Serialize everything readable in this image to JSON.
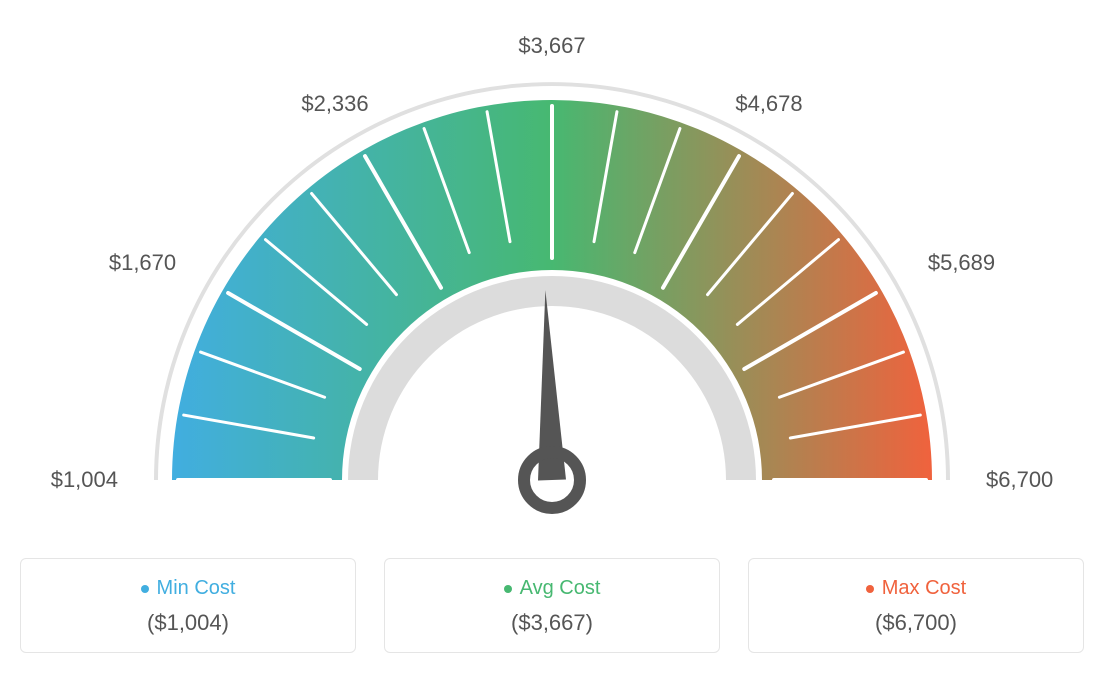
{
  "gauge": {
    "type": "gauge",
    "min_value": 1004,
    "max_value": 6700,
    "avg_value": 3667,
    "tick_labels": [
      "$1,004",
      "$1,670",
      "$2,336",
      "$3,667",
      "$4,678",
      "$5,689",
      "$6,700"
    ],
    "start_angle_deg": 180,
    "end_angle_deg": 0,
    "outer_radius": 380,
    "inner_radius": 210,
    "colors": {
      "left": "#41aee0",
      "mid": "#47b871",
      "right": "#f0623d",
      "tick": "#ffffff",
      "arc_border": "#e0e0e0",
      "inner_arc": "#dcdcdc",
      "needle": "#555555",
      "label_text": "#555555",
      "background": "#ffffff"
    },
    "label_fontsize": 22,
    "needle_angle_deg": 92
  },
  "legend": {
    "min": {
      "label": "Min Cost",
      "value": "($1,004)",
      "color": "#41aee0"
    },
    "avg": {
      "label": "Avg Cost",
      "value": "($3,667)",
      "color": "#47b871"
    },
    "max": {
      "label": "Max Cost",
      "value": "($6,700)",
      "color": "#f0623d"
    }
  }
}
